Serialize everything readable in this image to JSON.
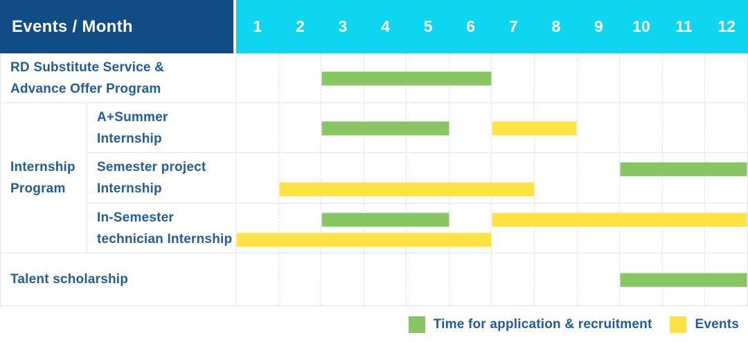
{
  "header": {
    "title": "Events / Month",
    "months": [
      "1",
      "2",
      "3",
      "4",
      "5",
      "6",
      "7",
      "8",
      "9",
      "10",
      "11",
      "12"
    ]
  },
  "group_label": "Internship\nProgram",
  "colors": {
    "header_bg": "#114d85",
    "months_bg": "#0fd6ef",
    "label_text": "#1f5c9f",
    "green": "#87c663",
    "yellow": "#ffe345"
  },
  "legend": [
    {
      "kind": "application",
      "label": "Time for application & recruitment"
    },
    {
      "kind": "event",
      "label": "Events"
    }
  ],
  "chart_data": {
    "type": "gantt",
    "unit": "month",
    "x_range": [
      1,
      12
    ],
    "x_ticks": [
      "1",
      "2",
      "3",
      "4",
      "5",
      "6",
      "7",
      "8",
      "9",
      "10",
      "11",
      "12"
    ],
    "legend": {
      "green": "Time for application & recruitment",
      "yellow": "Events"
    },
    "rows": [
      {
        "label": "RD Substitute Service &\nAdvance Offer Program",
        "group": null,
        "bars": [
          {
            "kind": "application",
            "color": "green",
            "start_month": 3,
            "end_month": 6,
            "lane": "center"
          }
        ]
      },
      {
        "label": "A+Summer\nInternship",
        "group": "Internship Program",
        "bars": [
          {
            "kind": "application",
            "color": "green",
            "start_month": 3,
            "end_month": 5,
            "lane": "center"
          },
          {
            "kind": "event",
            "color": "yellow",
            "start_month": 7,
            "end_month": 8,
            "lane": "center"
          }
        ]
      },
      {
        "label": "Semester project\nInternship",
        "group": "Internship Program",
        "bars": [
          {
            "kind": "application",
            "color": "green",
            "start_month": 10,
            "end_month": 12,
            "lane": "upper"
          },
          {
            "kind": "event",
            "color": "yellow",
            "start_month": 2,
            "end_month": 7,
            "lane": "lower"
          }
        ]
      },
      {
        "label": "In-Semester\ntechnician Internship",
        "group": "Internship Program",
        "bars": [
          {
            "kind": "application",
            "color": "green",
            "start_month": 3,
            "end_month": 5,
            "lane": "upper"
          },
          {
            "kind": "event",
            "color": "yellow",
            "start_month": 7,
            "end_month": 12,
            "lane": "upper"
          },
          {
            "kind": "event",
            "color": "yellow",
            "start_month": 1,
            "end_month": 6,
            "lane": "lower"
          }
        ]
      },
      {
        "label": "Talent scholarship",
        "group": null,
        "bars": [
          {
            "kind": "application",
            "color": "green",
            "start_month": 10,
            "end_month": 12,
            "lane": "center"
          }
        ]
      }
    ]
  }
}
